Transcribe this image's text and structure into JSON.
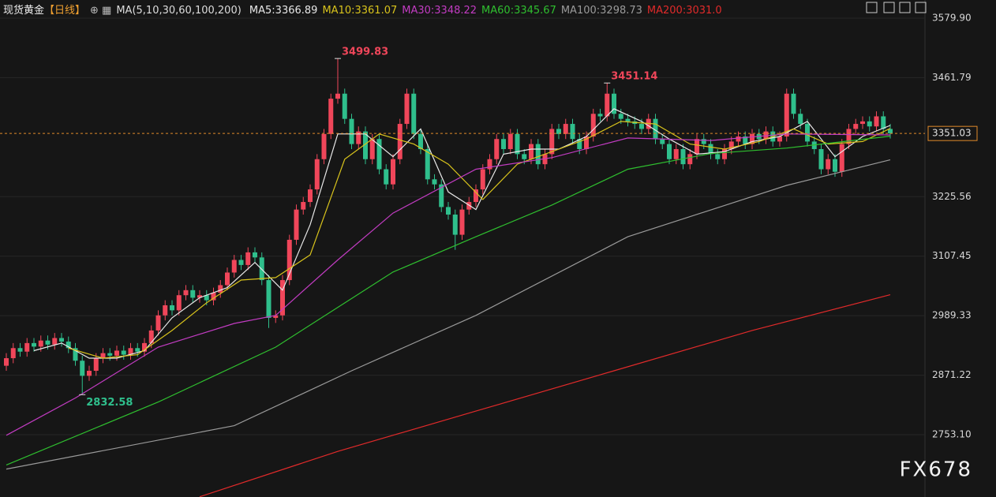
{
  "chart_data": {
    "type": "candlestick",
    "instrument": "现货黄金",
    "period": "【日线】",
    "indicator": "MA(5,10,30,60,100,200)",
    "watermark": "FX678",
    "up_color": "#f0465a",
    "down_color": "#2fbf8c",
    "ylim": [
      2629.5,
      3615.9
    ],
    "yticks": [
      {
        "value": 3579.9,
        "label": "3579.90"
      },
      3461.79,
      3225.56,
      3107.45,
      2989.33,
      2871.22,
      {
        "value": 2753.1,
        "label": "2753.10"
      }
    ],
    "grid": true,
    "open": [
      2890,
      2905,
      2925,
      2918,
      2935,
      2928,
      2940,
      2932,
      2945,
      2938,
      2925,
      2900,
      2870,
      2880,
      2905,
      2915,
      2910,
      2920,
      2912,
      2925,
      2918,
      2935,
      2960,
      2990,
      3010,
      3000,
      3030,
      3040,
      3025,
      3030,
      3020,
      3035,
      3050,
      3075,
      3100,
      3090,
      3115,
      3105,
      3060,
      2985,
      2990,
      3060,
      3140,
      3200,
      3215,
      3240,
      3300,
      3350,
      3420,
      3430,
      3380,
      3330,
      3355,
      3300,
      3340,
      3280,
      3250,
      3300,
      3370,
      3430,
      3350,
      3320,
      3260,
      3250,
      3205,
      3190,
      3150,
      3200,
      3215,
      3240,
      3280,
      3300,
      3340,
      3320,
      3350,
      3310,
      3300,
      3330,
      3290,
      3310,
      3360,
      3350,
      3370,
      3340,
      3320,
      3345,
      3390,
      3385,
      3430,
      3390,
      3380,
      3375,
      3370,
      3360,
      3380,
      3340,
      3330,
      3300,
      3320,
      3290,
      3310,
      3340,
      3330,
      3310,
      3300,
      3320,
      3335,
      3345,
      3330,
      3350,
      3340,
      3355,
      3335,
      3345,
      3430,
      3390,
      3370,
      3335,
      3320,
      3280,
      3300,
      3275,
      3330,
      3360,
      3370,
      3375,
      3365,
      3385,
      3360
    ],
    "high": [
      2915,
      2935,
      2935,
      2945,
      2945,
      2950,
      2950,
      2955,
      2955,
      2948,
      2935,
      2910,
      2890,
      2915,
      2925,
      2925,
      2930,
      2930,
      2935,
      2935,
      2945,
      2970,
      3000,
      3020,
      3020,
      3040,
      3050,
      3050,
      3040,
      3040,
      3045,
      3060,
      3085,
      3110,
      3110,
      3125,
      3125,
      3115,
      3070,
      3000,
      3070,
      3150,
      3210,
      3225,
      3250,
      3310,
      3360,
      3430,
      3499.83,
      3440,
      3390,
      3365,
      3365,
      3350,
      3350,
      3290,
      3310,
      3380,
      3440,
      3440,
      3360,
      3330,
      3270,
      3260,
      3215,
      3200,
      3210,
      3225,
      3250,
      3290,
      3310,
      3350,
      3350,
      3360,
      3360,
      3320,
      3340,
      3340,
      3320,
      3370,
      3370,
      3380,
      3380,
      3350,
      3355,
      3400,
      3400,
      3451.14,
      3440,
      3400,
      3390,
      3385,
      3380,
      3390,
      3390,
      3350,
      3340,
      3330,
      3330,
      3320,
      3350,
      3350,
      3340,
      3320,
      3330,
      3345,
      3355,
      3355,
      3360,
      3360,
      3365,
      3365,
      3355,
      3440,
      3440,
      3400,
      3380,
      3345,
      3330,
      3310,
      3310,
      3340,
      3370,
      3380,
      3385,
      3385,
      3395,
      3395,
      3370
    ],
    "low": [
      2880,
      2895,
      2908,
      2908,
      2918,
      2918,
      2922,
      2922,
      2928,
      2915,
      2890,
      2832.58,
      2860,
      2870,
      2895,
      2900,
      2900,
      2902,
      2902,
      2908,
      2908,
      2925,
      2950,
      2980,
      2990,
      2990,
      3020,
      3015,
      3015,
      3010,
      3010,
      3025,
      3040,
      3065,
      3080,
      3080,
      3095,
      3050,
      2965,
      2975,
      2980,
      3050,
      3130,
      3190,
      3205,
      3230,
      3290,
      3340,
      3410,
      3370,
      3320,
      3320,
      3290,
      3290,
      3270,
      3240,
      3240,
      3290,
      3360,
      3340,
      3310,
      3250,
      3240,
      3195,
      3180,
      3120,
      3140,
      3190,
      3205,
      3230,
      3270,
      3290,
      3310,
      3310,
      3300,
      3290,
      3290,
      3280,
      3280,
      3300,
      3340,
      3340,
      3330,
      3310,
      3310,
      3335,
      3375,
      3375,
      3380,
      3370,
      3365,
      3360,
      3350,
      3350,
      3330,
      3320,
      3290,
      3290,
      3280,
      3280,
      3300,
      3320,
      3300,
      3290,
      3290,
      3310,
      3325,
      3320,
      3320,
      3330,
      3330,
      3325,
      3325,
      3335,
      3380,
      3360,
      3325,
      3310,
      3270,
      3270,
      3265,
      3265,
      3320,
      3350,
      3360,
      3355,
      3355,
      3350,
      3341
    ],
    "close": [
      2905,
      2925,
      2918,
      2935,
      2928,
      2940,
      2932,
      2945,
      2938,
      2925,
      2900,
      2870,
      2880,
      2905,
      2915,
      2910,
      2920,
      2912,
      2925,
      2918,
      2935,
      2960,
      2990,
      3010,
      3000,
      3030,
      3040,
      3025,
      3030,
      3020,
      3035,
      3050,
      3075,
      3100,
      3090,
      3115,
      3105,
      3060,
      2985,
      2990,
      3060,
      3140,
      3200,
      3215,
      3240,
      3300,
      3350,
      3420,
      3430,
      3380,
      3330,
      3355,
      3300,
      3340,
      3280,
      3250,
      3300,
      3370,
      3430,
      3350,
      3320,
      3260,
      3250,
      3205,
      3190,
      3150,
      3200,
      3215,
      3240,
      3280,
      3300,
      3340,
      3320,
      3350,
      3310,
      3300,
      3330,
      3290,
      3310,
      3360,
      3350,
      3370,
      3340,
      3320,
      3345,
      3390,
      3385,
      3430,
      3390,
      3380,
      3375,
      3370,
      3360,
      3380,
      3340,
      3330,
      3300,
      3320,
      3290,
      3310,
      3340,
      3330,
      3310,
      3300,
      3320,
      3335,
      3345,
      3330,
      3350,
      3340,
      3355,
      3335,
      3345,
      3430,
      3390,
      3370,
      3335,
      3320,
      3280,
      3300,
      3275,
      3330,
      3360,
      3370,
      3375,
      3365,
      3385,
      3360,
      3351.03
    ],
    "series": [
      {
        "name": "MA5:3366.89",
        "color": "#e8e8e8",
        "x": [
          4,
          8,
          12,
          16,
          20,
          24,
          28,
          32,
          36,
          40,
          44,
          48,
          52,
          56,
          60,
          64,
          68,
          72,
          76,
          80,
          84,
          88,
          92,
          96,
          100,
          104,
          108,
          112,
          116,
          120,
          124,
          128
        ],
        "values": [
          2920,
          2935,
          2905,
          2905,
          2920,
          2985,
          3025,
          3045,
          3095,
          3040,
          3170,
          3350,
          3350,
          3305,
          3360,
          3235,
          3200,
          3310,
          3320,
          3320,
          3345,
          3400,
          3375,
          3340,
          3310,
          3315,
          3335,
          3345,
          3375,
          3305,
          3345,
          3366.89
        ]
      },
      {
        "name": "MA10:3361.07",
        "color": "#d8c31c",
        "x": [
          9,
          14,
          19,
          24,
          29,
          34,
          39,
          44,
          49,
          54,
          59,
          64,
          69,
          74,
          79,
          84,
          89,
          94,
          99,
          104,
          109,
          114,
          119,
          124,
          128
        ],
        "values": [
          2925,
          2905,
          2912,
          2960,
          3015,
          3060,
          3065,
          3110,
          3300,
          3350,
          3330,
          3290,
          3220,
          3290,
          3315,
          3340,
          3375,
          3370,
          3330,
          3320,
          3335,
          3360,
          3330,
          3335,
          3361.07
        ]
      },
      {
        "name": "MA30:3348.22",
        "color": "#c23cc2",
        "x": [
          0,
          10,
          22,
          33,
          39,
          48,
          56,
          68,
          79,
          90,
          102,
          113,
          128
        ],
        "values": [
          2752,
          2826,
          2927,
          2974,
          2990,
          3100,
          3193,
          3280,
          3303,
          3342,
          3337,
          3350,
          3348.22
        ]
      },
      {
        "name": "MA60:3345.67",
        "color": "#2fbf2f",
        "x": [
          0,
          22,
          39,
          56,
          68,
          79,
          90,
          102,
          113,
          128
        ],
        "values": [
          2693,
          2818,
          2927,
          3076,
          3146,
          3209,
          3280,
          3311,
          3322,
          3345.67
        ]
      },
      {
        "name": "MA100:3298.73",
        "color": "#9a9a9a",
        "x": [
          0,
          33,
          50,
          68,
          90,
          113,
          128
        ],
        "values": [
          2685,
          2771,
          2880,
          2990,
          3146,
          3248,
          3298.73
        ]
      },
      {
        "name": "MA200:3031.0",
        "color": "#e02a2a",
        "x": [
          28,
          48,
          68,
          88,
          108,
          128
        ],
        "values": [
          2630,
          2720,
          2800,
          2880,
          2960,
          3031.0
        ]
      }
    ]
  }
}
